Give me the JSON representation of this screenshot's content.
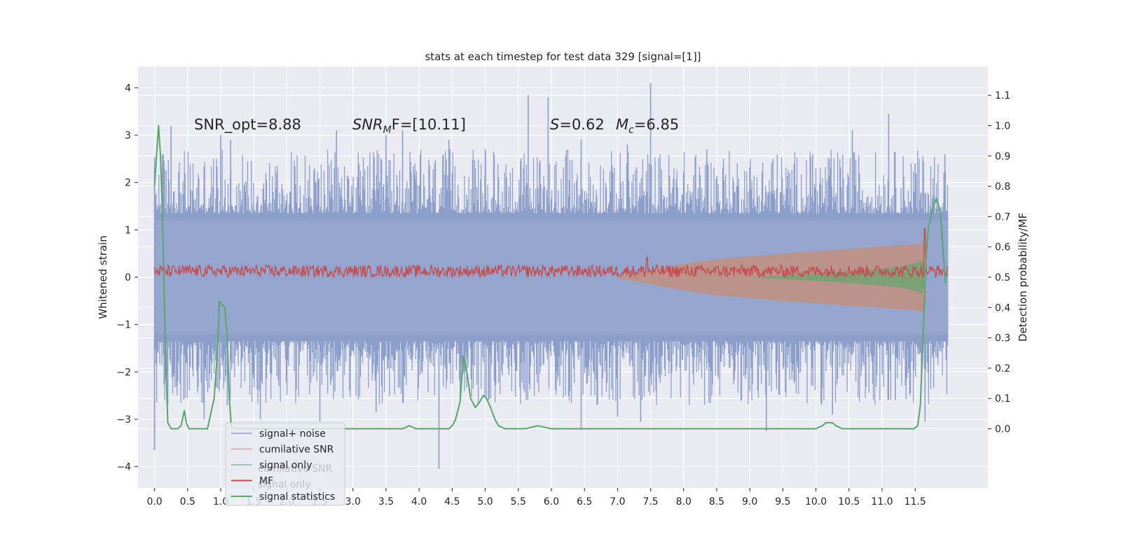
{
  "chart_data": {
    "type": "line",
    "title": "stats at each timestep for test data 329 [signal=[1]]",
    "xlabel": "",
    "ylabel": "Whitened strain",
    "y2label": "Detection probability/MF",
    "xlim": [
      -0.25,
      12.6
    ],
    "ylim": [
      -4.45,
      4.45
    ],
    "y2lim": [
      -0.195,
      1.195
    ],
    "grid": true,
    "x_ticks": [
      0.0,
      0.5,
      1.0,
      1.5,
      2.0,
      2.5,
      3.0,
      3.5,
      4.0,
      4.5,
      5.0,
      5.5,
      6.0,
      6.5,
      7.0,
      7.5,
      8.0,
      8.5,
      9.0,
      9.5,
      10.0,
      10.5,
      11.0,
      11.5
    ],
    "x_tick_labels": [
      "0.0",
      "0.5",
      "1.0",
      "1.5",
      "2.0",
      "2.5",
      "3.0",
      "3.5",
      "4.0",
      "4.5",
      "5.0",
      "5.5",
      "6.0",
      "6.5",
      "7.0",
      "7.5",
      "8.0",
      "8.5",
      "9.0",
      "9.5",
      "10.0",
      "10.5",
      "11.0",
      "11.5"
    ],
    "y_ticks": [
      -4,
      -3,
      -2,
      -1,
      0,
      1,
      2,
      3,
      4
    ],
    "y_tick_labels": [
      "−4",
      "−3",
      "−2",
      "−1",
      "0",
      "1",
      "2",
      "3",
      "4"
    ],
    "y2_ticks": [
      0.0,
      0.1,
      0.2,
      0.3,
      0.4,
      0.5,
      0.6,
      0.7,
      0.8,
      0.9,
      1.0,
      1.1
    ],
    "y2_tick_labels": [
      "0.0",
      "0.1",
      "0.2",
      "0.3",
      "0.4",
      "0.5",
      "0.6",
      "0.7",
      "0.8",
      "0.9",
      "1.0",
      "1.1"
    ],
    "annotations": {
      "snr_opt": "SNR_opt=8.88",
      "snr_mf_prefix": "SNR",
      "snr_mf_sub": "M",
      "snr_mf_suffix": "F=[10.11]",
      "s_var": "S",
      "s_value": "=0.62",
      "mc_var": "M",
      "mc_sub": "c",
      "mc_value": "=6.85"
    },
    "legend": {
      "location": "lower-left",
      "entries": [
        {
          "label": "signal+ noise",
          "color": "#8c9fcb"
        },
        {
          "label": "cumilative SNR",
          "color": "#dd8452"
        },
        {
          "label": "signal only",
          "color": "#55a868"
        },
        {
          "label": "MF",
          "color": "#c44e52"
        },
        {
          "label": "signal statistics",
          "color": "#55a868"
        }
      ],
      "ghost_labels": [
        "cumilative SNR",
        "signal only"
      ]
    },
    "series": [
      {
        "name": "signal+ noise",
        "axis": "left",
        "color": "#8c9fcb",
        "style": "dense-noise",
        "x_range": [
          0.0,
          12.0
        ],
        "core_band": [
          -1.3,
          1.3
        ],
        "peaks_positive": [
          [
            0.0,
            2.3
          ],
          [
            0.12,
            2.6
          ],
          [
            0.25,
            3.2
          ],
          [
            1.0,
            3.0
          ],
          [
            1.15,
            2.9
          ],
          [
            2.75,
            3.1
          ],
          [
            3.5,
            3.0
          ],
          [
            3.75,
            3.1
          ],
          [
            4.45,
            2.9
          ],
          [
            5.0,
            2.7
          ],
          [
            5.65,
            3.85
          ],
          [
            5.95,
            3.8
          ],
          [
            6.45,
            2.9
          ],
          [
            7.15,
            2.8
          ],
          [
            7.5,
            4.1
          ],
          [
            8.35,
            2.7
          ],
          [
            9.35,
            2.5
          ],
          [
            9.95,
            2.6
          ],
          [
            10.55,
            3.1
          ],
          [
            11.1,
            3.45
          ],
          [
            11.5,
            2.4
          ],
          [
            11.95,
            2.6
          ]
        ],
        "peaks_negative": [
          [
            0.0,
            -3.65
          ],
          [
            0.2,
            -2.7
          ],
          [
            0.75,
            -3.0
          ],
          [
            1.1,
            -2.7
          ],
          [
            1.6,
            -3.0
          ],
          [
            2.5,
            -3.05
          ],
          [
            3.35,
            -2.85
          ],
          [
            4.3,
            -4.05
          ],
          [
            5.05,
            -2.6
          ],
          [
            6.45,
            -3.2
          ],
          [
            7.0,
            -2.95
          ],
          [
            7.35,
            -3.05
          ],
          [
            9.25,
            -3.25
          ],
          [
            10.25,
            -2.9
          ],
          [
            11.2,
            -2.6
          ],
          [
            11.65,
            -3.05
          ]
        ]
      },
      {
        "name": "cumilative SNR",
        "axis": "left",
        "color": "#dd8452",
        "style": "envelope",
        "x": [
          7.0,
          7.5,
          8.0,
          8.5,
          9.0,
          9.5,
          10.0,
          10.5,
          11.0,
          11.5,
          11.62,
          11.66
        ],
        "upper": [
          0.02,
          0.15,
          0.28,
          0.38,
          0.44,
          0.5,
          0.55,
          0.6,
          0.65,
          0.7,
          0.72,
          0.5
        ],
        "lower": [
          -0.02,
          -0.15,
          -0.28,
          -0.38,
          -0.44,
          -0.5,
          -0.55,
          -0.6,
          -0.65,
          -0.7,
          -0.72,
          -0.5
        ]
      },
      {
        "name": "signal only",
        "axis": "left",
        "color": "#55a868",
        "style": "envelope",
        "x": [
          9.0,
          9.5,
          10.0,
          10.5,
          11.0,
          11.3,
          11.5,
          11.6,
          11.66
        ],
        "upper": [
          0.0,
          0.04,
          0.08,
          0.12,
          0.18,
          0.22,
          0.3,
          0.35,
          0.1
        ],
        "lower": [
          0.0,
          -0.04,
          -0.08,
          -0.12,
          -0.18,
          -0.22,
          -0.3,
          -0.35,
          -0.1
        ]
      },
      {
        "name": "MF",
        "axis": "right",
        "color": "#c44e52",
        "style": "noisy-line",
        "baseline": 0.52,
        "amplitude": 0.02,
        "spikes": [
          [
            7.45,
            0.565
          ],
          [
            11.65,
            0.66
          ]
        ],
        "x_range": [
          0.0,
          12.0
        ]
      },
      {
        "name": "signal statistics",
        "axis": "right",
        "color": "#55a868",
        "style": "line",
        "x": [
          0.0,
          0.03,
          0.06,
          0.09,
          0.12,
          0.15,
          0.18,
          0.2,
          0.25,
          0.3,
          0.35,
          0.4,
          0.45,
          0.48,
          0.52,
          0.55,
          0.6,
          0.7,
          0.8,
          0.9,
          0.95,
          0.98,
          1.02,
          1.06,
          1.1,
          1.13,
          1.16,
          1.2,
          1.3,
          1.5,
          1.8,
          2.2,
          2.6,
          3.0,
          3.4,
          3.6,
          3.75,
          3.85,
          3.95,
          4.2,
          4.35,
          4.45,
          4.5,
          4.55,
          4.62,
          4.67,
          4.72,
          4.78,
          4.85,
          4.92,
          4.97,
          5.02,
          5.08,
          5.15,
          5.2,
          5.3,
          5.45,
          5.6,
          5.8,
          6.0,
          6.3,
          6.6,
          6.8,
          7.0,
          7.5,
          8.0,
          8.3,
          8.4,
          8.5,
          8.8,
          9.0,
          9.2,
          9.4,
          9.5,
          9.6,
          9.8,
          10.0,
          10.1,
          10.15,
          10.2,
          10.25,
          10.3,
          10.4,
          10.6,
          10.8,
          11.0,
          11.2,
          11.4,
          11.48,
          11.54,
          11.58,
          11.62,
          11.66,
          11.7,
          11.76,
          11.82,
          11.88,
          11.92,
          11.96
        ],
        "y": [
          0.8,
          0.9,
          1.0,
          0.9,
          0.7,
          0.4,
          0.15,
          0.02,
          0.0,
          0.0,
          0.0,
          0.01,
          0.06,
          0.02,
          0.0,
          0.0,
          0.0,
          0.0,
          0.0,
          0.1,
          0.25,
          0.42,
          0.41,
          0.4,
          0.3,
          0.1,
          0.01,
          0.0,
          0.0,
          0.0,
          0.0,
          0.0,
          0.0,
          0.0,
          0.0,
          0.0,
          0.0,
          0.01,
          0.0,
          0.0,
          0.0,
          0.0,
          0.01,
          0.03,
          0.09,
          0.24,
          0.19,
          0.1,
          0.07,
          0.09,
          0.11,
          0.1,
          0.07,
          0.03,
          0.01,
          0.0,
          0.0,
          0.0,
          0.01,
          0.0,
          0.0,
          0.0,
          0.0,
          0.0,
          0.0,
          0.0,
          0.0,
          0.0,
          0.0,
          0.0,
          0.0,
          0.0,
          0.0,
          0.0,
          0.0,
          0.0,
          0.0,
          0.01,
          0.02,
          0.02,
          0.02,
          0.01,
          0.0,
          0.0,
          0.0,
          0.0,
          0.0,
          0.0,
          0.0,
          0.01,
          0.08,
          0.3,
          0.55,
          0.66,
          0.72,
          0.76,
          0.72,
          0.6,
          0.48
        ]
      }
    ]
  }
}
